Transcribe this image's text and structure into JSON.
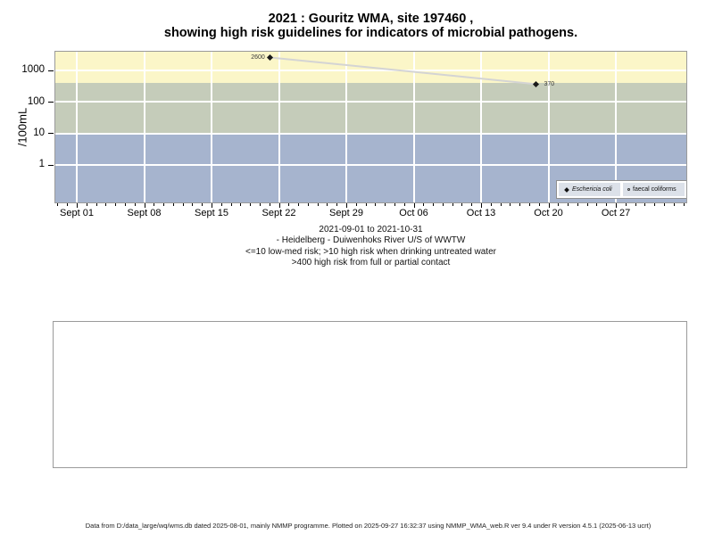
{
  "title": {
    "line1": "2021 : Gouritz WMA, site 197460 ,",
    "line2": "showing high risk guidelines for indicators of microbial pathogens."
  },
  "chart_data": {
    "type": "scatter-line",
    "ylabel": "/100mL",
    "y_scale": "log",
    "y_ticks": [
      1000,
      100,
      10,
      1
    ],
    "x_ticks": [
      {
        "day": 0,
        "label": "Sept 01"
      },
      {
        "day": 7,
        "label": "Sept 08"
      },
      {
        "day": 14,
        "label": "Sept 15"
      },
      {
        "day": 21,
        "label": "Sept 22"
      },
      {
        "day": 28,
        "label": "Sept 29"
      },
      {
        "day": 35,
        "label": "Oct 06"
      },
      {
        "day": 42,
        "label": "Oct 13"
      },
      {
        "day": 49,
        "label": "Oct 20"
      },
      {
        "day": 56,
        "label": "Oct 27"
      }
    ],
    "x_minor_day_range": [
      -2,
      63
    ],
    "bands": [
      {
        "min": 400,
        "max": null,
        "color": "#FBF6C8",
        "meaning": ">400 high risk from full or partial contact"
      },
      {
        "min": 10,
        "max": 400,
        "color": "#C5CCBA",
        "meaning": ">10 high risk when drinking untreated water"
      },
      {
        "min": null,
        "max": 10,
        "color": "#A6B4CE",
        "meaning": "<=10 low-med risk"
      }
    ],
    "series": [
      {
        "name": "Eschericia coli",
        "marker": "filled-diamond",
        "points": [
          {
            "date": "2021-09-21",
            "day": 20.1,
            "value": 2600,
            "label": "2600",
            "label_side": "left"
          },
          {
            "date": "2021-10-18",
            "day": 47.7,
            "value": 370,
            "label": "370",
            "label_side": "right"
          }
        ]
      },
      {
        "name": "faecal coliforms",
        "marker": "open-circle",
        "points": []
      }
    ],
    "line_color": "#D4D4D4",
    "grid_color": "#FFFFFF"
  },
  "legend": {
    "items": [
      {
        "label": "Eschericia coli",
        "marker": "filled-diamond"
      },
      {
        "label": "faecal coliforms",
        "marker": "open-circle"
      }
    ]
  },
  "caption": {
    "line1": "2021-09-01 to 2021-10-31",
    "line2": "- Heidelberg - Duiwenhoks River U/S of WWTW",
    "line3": "<=10 low-med risk; >10 high risk when drinking untreated water",
    "line4": ">400 high risk from full or partial contact"
  },
  "footer": {
    "text": "Data from D:/data_large/wq/wms.db dated 2025-08-01, mainly NMMP programme. Plotted on 2025-09-27 16:32:37 using NMMP_WMA_web.R ver 9.4 under R version 4.5.1 (2025-06-13 ucrt)"
  }
}
